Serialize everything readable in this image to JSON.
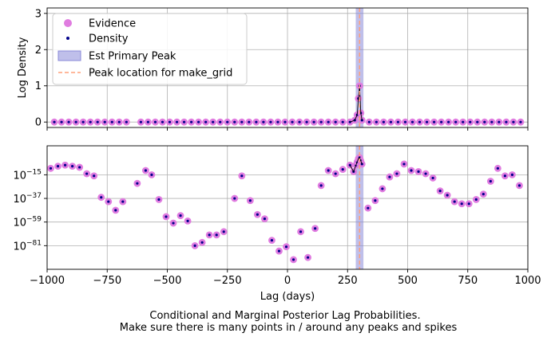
{
  "chart_data": [
    {
      "type": "scatter",
      "ylabel": "Log Density",
      "xlim": [
        -1000,
        1000
      ],
      "ylim": [
        -0.15,
        3.15
      ],
      "yticks": [
        "0",
        "1",
        "2",
        "3"
      ],
      "grid": true,
      "legend_position": "top-left",
      "legend": [
        {
          "label": "Evidence",
          "color": "#e07ce0",
          "marker": "circle"
        },
        {
          "label": "Density",
          "color": "#00008b",
          "marker": "dot"
        },
        {
          "label": "Est Primary Peak",
          "color": "#8a8ad8",
          "marker": "band"
        },
        {
          "label": "Peak location for make_grid",
          "color": "#ffa07a",
          "marker": "dashed-line"
        }
      ],
      "series": [
        {
          "name": "Evidence",
          "x": [
            -970,
            -940,
            -910,
            -880,
            -850,
            -820,
            -790,
            -760,
            -730,
            -700,
            -670,
            -610,
            -580,
            -550,
            -520,
            -490,
            -460,
            -430,
            -400,
            -370,
            -340,
            -310,
            -280,
            -250,
            -220,
            -190,
            -160,
            -130,
            -100,
            -70,
            -40,
            -10,
            20,
            50,
            80,
            110,
            140,
            170,
            200,
            230,
            260,
            280,
            290,
            295,
            300,
            305,
            310,
            340,
            370,
            400,
            430,
            460,
            490,
            520,
            550,
            580,
            610,
            640,
            670,
            700,
            730,
            760,
            790,
            820,
            850,
            880,
            910,
            940,
            970
          ],
          "y": [
            0,
            0,
            0,
            0,
            0,
            0,
            0,
            0,
            0,
            0,
            0,
            0,
            0,
            0,
            0,
            0,
            0,
            0,
            0,
            0,
            0,
            0,
            0,
            0,
            0,
            0,
            0,
            0,
            0,
            0,
            0,
            0,
            0,
            0,
            0,
            0,
            0,
            0,
            0,
            0,
            0,
            0.05,
            0.2,
            0.65,
            1.0,
            0.25,
            0.05,
            0,
            0,
            0,
            0,
            0,
            0,
            0,
            0,
            0,
            0,
            0,
            0,
            0,
            0,
            0,
            0,
            0,
            0,
            0,
            0,
            0,
            0
          ]
        },
        {
          "name": "Density",
          "same_points_as": "Evidence"
        }
      ],
      "bands": [
        {
          "x0": 284,
          "x1": 316,
          "color": "#8a8ad8"
        }
      ],
      "vlines": [
        {
          "x": 300,
          "color": "#ffa07a",
          "style": "dashed"
        }
      ]
    },
    {
      "type": "scatter",
      "xlabel": "Lag (days)",
      "xlim": [
        -1000,
        1000
      ],
      "xticks": [
        "−1000",
        "−750",
        "−500",
        "−250",
        "0",
        "250",
        "500",
        "750",
        "1000"
      ],
      "yscale": "log",
      "ylim_exp": [
        -103,
        12
      ],
      "yticks": [
        {
          "base": "10",
          "exp": "−15",
          "value": -15
        },
        {
          "base": "10",
          "exp": "−37",
          "value": -37
        },
        {
          "base": "10",
          "exp": "−59",
          "value": -59
        },
        {
          "base": "10",
          "exp": "−81",
          "value": -81
        }
      ],
      "grid": true,
      "series": [
        {
          "name": "Evidence (log10)",
          "x": [
            -985,
            -955,
            -925,
            -895,
            -865,
            -835,
            -805,
            -775,
            -745,
            -715,
            -685,
            -625,
            -590,
            -565,
            -535,
            -505,
            -475,
            -445,
            -415,
            -385,
            -355,
            -325,
            -295,
            -265,
            -220,
            -190,
            -155,
            -125,
            -95,
            -65,
            -35,
            -5,
            25,
            55,
            85,
            115,
            140,
            170,
            200,
            230,
            260,
            275,
            285,
            290,
            295,
            300,
            305,
            310,
            335,
            365,
            395,
            425,
            455,
            485,
            515,
            545,
            575,
            605,
            635,
            665,
            695,
            725,
            755,
            785,
            815,
            845,
            875,
            905,
            935,
            965
          ],
          "y": [
            -9,
            -7,
            -6,
            -7,
            -8,
            -14,
            -16,
            -36,
            -40,
            -48,
            -40,
            -23,
            -11,
            -15,
            -38,
            -54,
            -60,
            -53,
            -58,
            -81,
            -78,
            -71,
            -71,
            -68,
            -37,
            -16,
            -39,
            -52,
            -56,
            -76,
            -86,
            -82,
            -94,
            -68,
            -92,
            -65,
            -25,
            -11,
            -14,
            -10,
            -6,
            -12,
            -6,
            -3,
            0,
            1,
            -2,
            -5,
            -46,
            -39,
            -28,
            -17,
            -14,
            -5,
            -11,
            -12,
            -14,
            -18,
            -30,
            -34,
            -40,
            -42,
            -42,
            -38,
            -33,
            -21,
            -9,
            -16,
            -15,
            -25
          ]
        },
        {
          "name": "Density",
          "same_points_as": "Evidence (log10)"
        }
      ],
      "bands": [
        {
          "x0": 284,
          "x1": 316,
          "color": "#8a8ad8"
        }
      ],
      "vlines": [
        {
          "x": 300,
          "color": "#ffa07a",
          "style": "dashed"
        }
      ]
    }
  ],
  "caption_line1": "Conditional and Marginal Posterior Lag Probabilities.",
  "caption_line2": "Make sure there is many points in / around any peaks and spikes"
}
